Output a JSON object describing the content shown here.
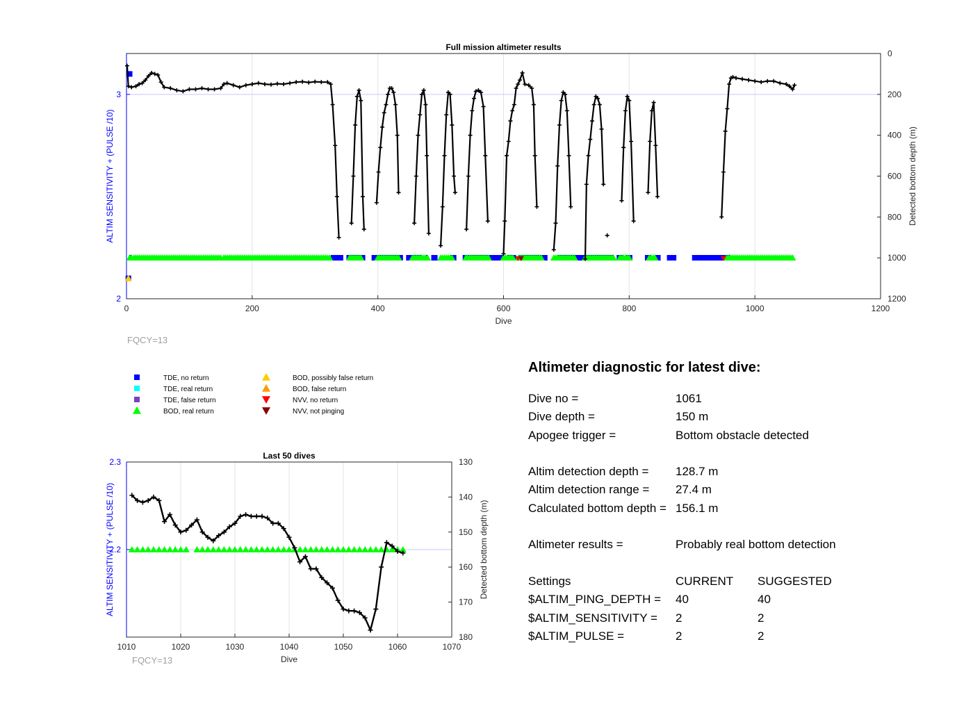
{
  "colors": {
    "tde_no_return": "#0000ff",
    "tde_real_return": "#00ffff",
    "tde_false_return": "#7f3fbf",
    "bod_real_return": "#00ff00",
    "bod_possibly_false": "#ffcc00",
    "bod_false": "#ff9900",
    "nvv_no_return": "#ff0000",
    "nvv_not_pinging": "#8b0000",
    "left_axis": "#0000ff",
    "depth_line": "#000000"
  },
  "chart_data": [
    {
      "type": "scatter+line",
      "title": "Full mission altimeter results",
      "xlabel": "Dive",
      "ylabel_left": "ALTIM SENSITIVITY + (PULSE /10)",
      "ylabel_right": "Detected bottom depth (m)",
      "xlim": [
        0,
        1200
      ],
      "xticks": [
        "0",
        "200",
        "400",
        "600",
        "800",
        "1000",
        "1200"
      ],
      "ylim_left": [
        2,
        3.2
      ],
      "yticks_left": [
        "2",
        "3"
      ],
      "ylim_right": [
        1200,
        0
      ],
      "yticks_right": [
        "0",
        "200",
        "400",
        "600",
        "800",
        "1000",
        "1200"
      ],
      "grid": true,
      "annotation": "FQCY=13",
      "depth_segments": [
        [
          [
            1,
            60
          ],
          [
            3,
            160
          ],
          [
            8,
            165
          ],
          [
            15,
            160
          ],
          [
            20,
            150
          ],
          [
            25,
            145
          ],
          [
            30,
            130
          ],
          [
            35,
            110
          ],
          [
            40,
            95
          ],
          [
            45,
            100
          ],
          [
            50,
            105
          ],
          [
            55,
            140
          ],
          [
            60,
            165
          ],
          [
            70,
            170
          ],
          [
            80,
            180
          ],
          [
            90,
            185
          ],
          [
            100,
            175
          ],
          [
            110,
            175
          ],
          [
            120,
            170
          ],
          [
            130,
            175
          ],
          [
            140,
            175
          ],
          [
            150,
            170
          ],
          [
            155,
            150
          ],
          [
            160,
            145
          ],
          [
            170,
            155
          ],
          [
            180,
            165
          ],
          [
            190,
            155
          ],
          [
            200,
            150
          ],
          [
            210,
            145
          ],
          [
            220,
            150
          ],
          [
            230,
            152
          ],
          [
            240,
            148
          ],
          [
            250,
            150
          ],
          [
            260,
            145
          ],
          [
            270,
            140
          ],
          [
            280,
            138
          ],
          [
            290,
            142
          ],
          [
            300,
            138
          ],
          [
            310,
            140
          ],
          [
            320,
            140
          ],
          [
            325,
            150
          ],
          [
            328,
            250
          ],
          [
            332,
            450
          ],
          [
            335,
            700
          ],
          [
            338,
            900
          ]
        ],
        [
          [
            358,
            830
          ],
          [
            361,
            600
          ],
          [
            364,
            350
          ],
          [
            367,
            210
          ],
          [
            370,
            180
          ],
          [
            373,
            230
          ],
          [
            376,
            700
          ],
          [
            378,
            860
          ]
        ],
        [
          [
            398,
            730
          ],
          [
            401,
            580
          ],
          [
            404,
            460
          ],
          [
            407,
            360
          ],
          [
            410,
            290
          ],
          [
            413,
            250
          ],
          [
            416,
            200
          ],
          [
            419,
            170
          ],
          [
            422,
            170
          ],
          [
            425,
            190
          ],
          [
            428,
            250
          ],
          [
            431,
            400
          ],
          [
            433,
            680
          ]
        ],
        [
          [
            458,
            830
          ],
          [
            461,
            600
          ],
          [
            464,
            400
          ],
          [
            467,
            300
          ],
          [
            470,
            200
          ],
          [
            473,
            180
          ],
          [
            476,
            250
          ],
          [
            478,
            500
          ],
          [
            481,
            880
          ]
        ],
        [
          [
            500,
            940
          ],
          [
            503,
            750
          ],
          [
            506,
            500
          ],
          [
            509,
            300
          ],
          [
            512,
            190
          ],
          [
            515,
            200
          ],
          [
            518,
            350
          ],
          [
            521,
            600
          ],
          [
            523,
            680
          ]
        ],
        [
          [
            541,
            860
          ],
          [
            544,
            600
          ],
          [
            547,
            400
          ],
          [
            550,
            280
          ],
          [
            553,
            220
          ],
          [
            556,
            185
          ],
          [
            560,
            180
          ],
          [
            564,
            190
          ],
          [
            568,
            260
          ],
          [
            571,
            500
          ],
          [
            575,
            820
          ]
        ],
        [
          [
            600,
            980
          ],
          [
            602,
            820
          ],
          [
            605,
            500
          ],
          [
            608,
            430
          ],
          [
            611,
            330
          ],
          [
            614,
            280
          ],
          [
            617,
            250
          ],
          [
            620,
            170
          ],
          [
            623,
            150
          ],
          [
            626,
            130
          ],
          [
            630,
            95
          ],
          [
            634,
            150
          ],
          [
            640,
            155
          ],
          [
            645,
            170
          ],
          [
            648,
            250
          ],
          [
            650,
            500
          ],
          [
            653,
            750
          ]
        ],
        [
          [
            680,
            960
          ],
          [
            683,
            830
          ],
          [
            686,
            550
          ],
          [
            689,
            350
          ],
          [
            692,
            230
          ],
          [
            695,
            190
          ],
          [
            698,
            200
          ],
          [
            701,
            280
          ],
          [
            704,
            500
          ],
          [
            707,
            750
          ]
        ],
        [
          [
            730,
            1005
          ],
          [
            732,
            640
          ],
          [
            735,
            500
          ],
          [
            738,
            420
          ],
          [
            741,
            330
          ],
          [
            744,
            250
          ],
          [
            747,
            210
          ],
          [
            750,
            220
          ],
          [
            753,
            250
          ],
          [
            756,
            370
          ],
          [
            759,
            640
          ]
        ],
        [
          [
            765,
            890
          ]
        ],
        [
          [
            788,
            720
          ],
          [
            791,
            460
          ],
          [
            794,
            280
          ],
          [
            797,
            210
          ],
          [
            800,
            230
          ],
          [
            803,
            430
          ],
          [
            807,
            820
          ]
        ],
        [
          [
            830,
            680
          ],
          [
            833,
            430
          ],
          [
            836,
            280
          ],
          [
            839,
            240
          ],
          [
            842,
            450
          ],
          [
            845,
            700
          ]
        ],
        [
          [
            947,
            800
          ],
          [
            950,
            580
          ],
          [
            953,
            380
          ],
          [
            956,
            270
          ],
          [
            959,
            150
          ],
          [
            962,
            120
          ],
          [
            965,
            115
          ],
          [
            970,
            120
          ],
          [
            980,
            125
          ],
          [
            990,
            130
          ],
          [
            1000,
            135
          ],
          [
            1010,
            140
          ],
          [
            1020,
            135
          ],
          [
            1030,
            135
          ],
          [
            1040,
            145
          ],
          [
            1050,
            150
          ],
          [
            1055,
            160
          ],
          [
            1060,
            175
          ],
          [
            1063,
            155
          ]
        ]
      ],
      "bod_real_segments": [
        [
          5,
          10
        ],
        [
          12,
          150
        ],
        [
          155,
          325
        ],
        [
          355,
          375
        ],
        [
          400,
          435
        ],
        [
          455,
          480
        ],
        [
          500,
          520
        ],
        [
          540,
          578
        ],
        [
          600,
          615
        ],
        [
          624,
          660
        ],
        [
          680,
          715
        ],
        [
          730,
          775
        ],
        [
          785,
          800
        ],
        [
          832,
          842
        ],
        [
          955,
          1060
        ]
      ],
      "tde_no_return_segments": [
        [
          5,
          6
        ],
        [
          325,
          345
        ],
        [
          350,
          380
        ],
        [
          390,
          440
        ],
        [
          445,
          470
        ],
        [
          475,
          480
        ],
        [
          485,
          495
        ],
        [
          515,
          525
        ],
        [
          535,
          600
        ],
        [
          605,
          620
        ],
        [
          625,
          670
        ],
        [
          685,
          775
        ],
        [
          780,
          790
        ],
        [
          795,
          805
        ],
        [
          825,
          835
        ],
        [
          840,
          850
        ],
        [
          860,
          875
        ],
        [
          900,
          960
        ]
      ],
      "nvv_no_return_x": [
        623,
        950
      ],
      "nvv_not_pinging_x": [
        628
      ],
      "tde_no_return_top_x": [
        5,
        3
      ],
      "tde_no_return_top_y": [
        3.1,
        2.1
      ],
      "bod_false_x": [
        3
      ],
      "bod_false_y": [
        2.1
      ]
    },
    {
      "type": "scatter+line",
      "title": "Last 50 dives",
      "xlabel": "Dive",
      "ylabel_left": "ALTIM SENSITIVITY + (PULSE /10)",
      "ylabel_right": "Detected bottom depth (m)",
      "xlim": [
        1010,
        1070
      ],
      "xticks": [
        "1010",
        "1020",
        "1030",
        "1040",
        "1050",
        "1060",
        "1070"
      ],
      "ylim_left": [
        2.1,
        2.3
      ],
      "yticks_left": [
        "2.2",
        "2.3"
      ],
      "ylim_right": [
        180,
        130
      ],
      "yticks_right": [
        "130",
        "140",
        "150",
        "160",
        "170",
        "180"
      ],
      "grid": true,
      "annotation": "FQCY=13",
      "dives": [
        1011,
        1012,
        1013,
        1014,
        1015,
        1016,
        1017,
        1018,
        1019,
        1020,
        1021,
        1022,
        1023,
        1024,
        1025,
        1026,
        1027,
        1028,
        1029,
        1030,
        1031,
        1032,
        1033,
        1034,
        1035,
        1036,
        1037,
        1038,
        1039,
        1040,
        1041,
        1042,
        1043,
        1044,
        1045,
        1046,
        1047,
        1048,
        1049,
        1050,
        1051,
        1052,
        1053,
        1054,
        1055,
        1056,
        1057,
        1058,
        1059,
        1060,
        1061
      ],
      "depth": [
        139.5,
        141,
        141.5,
        141,
        140,
        141,
        147,
        145,
        148,
        150,
        149.5,
        148,
        146.5,
        150,
        151.5,
        152.5,
        151,
        150,
        148.5,
        147.5,
        145.5,
        145,
        145.5,
        145.5,
        145.5,
        146,
        147.5,
        147.5,
        149,
        151.5,
        154.5,
        158.5,
        157,
        160.5,
        160.5,
        163,
        164.5,
        166,
        169.5,
        172,
        172.5,
        172.5,
        173,
        174.5,
        178,
        172,
        160,
        153,
        154,
        155.5,
        156
      ],
      "bod_real_x": [
        1011,
        1012,
        1013,
        1014,
        1015,
        1016,
        1017,
        1018,
        1019,
        1020,
        1021,
        1023,
        1024,
        1025,
        1026,
        1027,
        1028,
        1029,
        1030,
        1031,
        1032,
        1033,
        1034,
        1035,
        1036,
        1037,
        1038,
        1039,
        1040,
        1041,
        1042,
        1043,
        1044,
        1045,
        1046,
        1047,
        1048,
        1049,
        1050,
        1051,
        1052,
        1053,
        1054,
        1055,
        1056,
        1057,
        1058,
        1059,
        1060,
        1061
      ],
      "bod_real_y": 2.2
    }
  ],
  "legend": {
    "items": [
      {
        "label": "TDE, no return",
        "marker": "square",
        "color_key": "tde_no_return"
      },
      {
        "label": "TDE, real return",
        "marker": "square",
        "color_key": "tde_real_return"
      },
      {
        "label": "TDE, false return",
        "marker": "square",
        "color_key": "tde_false_return"
      },
      {
        "label": "BOD, real return",
        "marker": "triangle-up",
        "color_key": "bod_real_return"
      },
      {
        "label": "BOD, possibly false return",
        "marker": "triangle-up",
        "color_key": "bod_possibly_false"
      },
      {
        "label": "BOD, false return",
        "marker": "triangle-up",
        "color_key": "bod_false"
      },
      {
        "label": "NVV, no return",
        "marker": "triangle-down",
        "color_key": "nvv_no_return"
      },
      {
        "label": "NVV, not pinging",
        "marker": "triangle-down",
        "color_key": "nvv_not_pinging"
      }
    ]
  },
  "diagnostic": {
    "title": "Altimeter diagnostic for latest dive:",
    "dive_no_label": "Dive no =",
    "dive_no_value": "1061",
    "dive_depth_label": "Dive depth =",
    "dive_depth_value": "150 m",
    "apogee_label": "Apogee trigger =",
    "apogee_value": "Bottom obstacle detected",
    "altim_det_depth_label": "Altim detection depth =",
    "altim_det_depth_value": "128.7 m",
    "altim_det_range_label": "Altim detection range =",
    "altim_det_range_value": "27.4 m",
    "calc_bottom_label": "Calculated bottom depth =",
    "calc_bottom_value": "156.1 m",
    "results_label": "Altimeter results =",
    "results_value": "Probably real bottom detection",
    "settings_label": "Settings",
    "current_label": "CURRENT",
    "suggested_label": "SUGGESTED",
    "ping_depth_label": "$ALTIM_PING_DEPTH =",
    "ping_depth_current": "40",
    "ping_depth_suggested": "40",
    "sensitivity_label": "$ALTIM_SENSITIVITY =",
    "sensitivity_current": "2",
    "sensitivity_suggested": "2",
    "pulse_label": "$ALTIM_PULSE =",
    "pulse_current": "2",
    "pulse_suggested": "2"
  }
}
